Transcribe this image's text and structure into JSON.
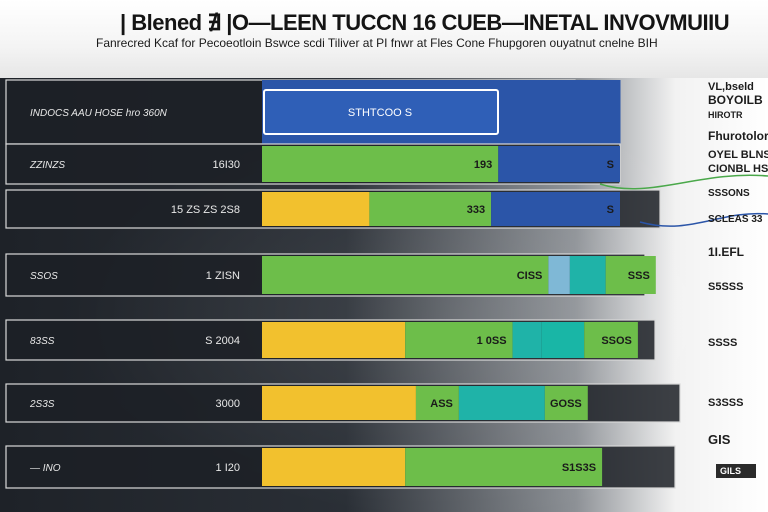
{
  "header": {
    "title": "| Blened ∄ |O—LEEN TUCCN 16 CUEB—INETAL INVOVMUIIU",
    "subtitle": "Fanrecred Kcaf for Pecoeotloin Bswce scdi Tiliver at PI fnwr at Fles Cone Fhupgoren ouyatnut cnelne BIH"
  },
  "chart_data": {
    "type": "stacked-horizontal-bar",
    "title": "| Blened ∄ |O—LEEN TUCCN 16 CUEB—INETAL INVOVMUIIU",
    "xlim": [
      0,
      100
    ],
    "categories": [
      "INDOCS AAU HOSE hro 360N",
      "ZZINZS",
      "",
      "SSOS",
      "83SS",
      "2S3S",
      "— INO"
    ],
    "mid_labels": [
      "",
      "16I30",
      "15 ZS ZS 2S8",
      "1 ZISN",
      "S 2004",
      "3000",
      "1 I20"
    ],
    "rows": [
      {
        "segments": [
          {
            "color": "#2b55a8",
            "value": 100,
            "label": "STHTCOO S"
          }
        ]
      },
      {
        "segments": [
          {
            "color": "#6dbe4a",
            "value": 66,
            "label": "193"
          },
          {
            "color": "#2b55a8",
            "value": 34,
            "label": "S"
          }
        ]
      },
      {
        "segments": [
          {
            "color": "#f2c12e",
            "value": 30,
            "label": ""
          },
          {
            "color": "#6dbe4a",
            "value": 34,
            "label": "333"
          },
          {
            "color": "#2b55a8",
            "value": 36,
            "label": "S"
          }
        ]
      },
      {
        "segments": [
          {
            "color": "#6dbe4a",
            "value": 80,
            "label": "CISS"
          },
          {
            "color": "#7fb8d6",
            "value": 6,
            "label": ""
          },
          {
            "color": "#1fb3a8",
            "value": 10,
            "label": ""
          },
          {
            "color": "#6dbe4a",
            "value": 14,
            "label": "SSS"
          }
        ]
      },
      {
        "segments": [
          {
            "color": "#f2c12e",
            "value": 40,
            "label": ""
          },
          {
            "color": "#6dbe4a",
            "value": 30,
            "label": "1 0SS"
          },
          {
            "color": "#1fb3a8",
            "value": 8,
            "label": ""
          },
          {
            "color": "#19b6a6",
            "value": 12,
            "label": ""
          },
          {
            "color": "#6dbe4a",
            "value": 15,
            "label": "SSOS"
          }
        ]
      },
      {
        "segments": [
          {
            "color": "#f2c12e",
            "value": 43,
            "label": ""
          },
          {
            "color": "#6dbe4a",
            "value": 12,
            "label": "ASS"
          },
          {
            "color": "#1fb3a8",
            "value": 24,
            "label": ""
          },
          {
            "color": "#6dbe4a",
            "value": 12,
            "label": "GOSS"
          }
        ]
      },
      {
        "segments": [
          {
            "color": "#f2c12e",
            "value": 40,
            "label": ""
          },
          {
            "color": "#6dbe4a",
            "value": 55,
            "label": "S1S3S"
          }
        ]
      }
    ],
    "right_labels": [
      "VL,bseld",
      "BOYOILB",
      "HIROTR",
      "Fhurotolorn",
      "OYEL BLNS",
      "CIONBL HS",
      "SSSONS",
      "SCLEAS 33",
      "1I.EFL",
      "S5SSS",
      "SSSS",
      "S3SSS",
      "GIS",
      "GILS"
    ]
  }
}
